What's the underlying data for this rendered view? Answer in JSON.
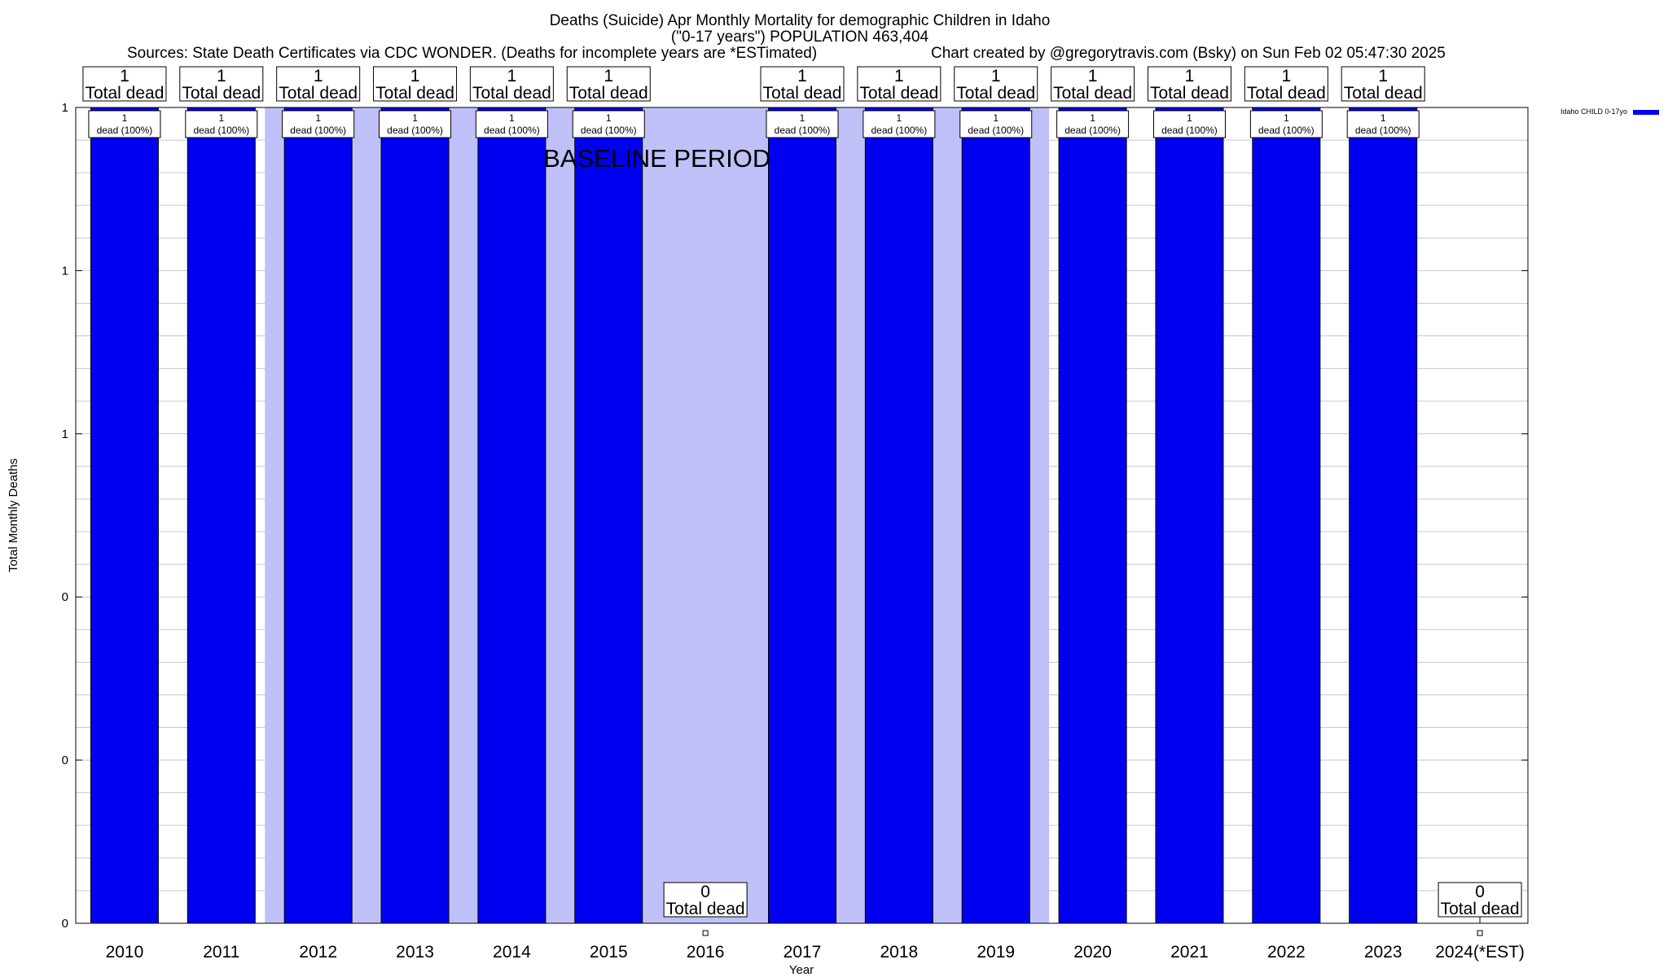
{
  "header": {
    "title_line1": "Deaths (Suicide) Apr Monthly Mortality for demographic Children in Idaho",
    "title_line2": "(\"0-17 years\") POPULATION 463,404",
    "sources": "Sources: State Death Certificates via CDC WONDER. (Deaths for incomplete years are *ESTimated)",
    "credit": "Chart created by @gregorytravis.com (Bsky) on Sun Feb 02 05:47:30 2025"
  },
  "chart_data": {
    "type": "bar",
    "xlabel": "Year",
    "ylabel": "Total Monthly Deaths",
    "categories": [
      "2010",
      "2011",
      "2012",
      "2013",
      "2014",
      "2015",
      "2016",
      "2017",
      "2018",
      "2019",
      "2020",
      "2021",
      "2022",
      "2023",
      "2024(*EST)"
    ],
    "series": [
      {
        "name": "Idaho CHILD 0-17yo",
        "color": "#0000f0",
        "values": [
          1,
          1,
          1,
          1,
          1,
          1,
          0,
          1,
          1,
          1,
          1,
          1,
          1,
          1,
          0
        ]
      }
    ],
    "total_labels": [
      "1",
      "1",
      "1",
      "1",
      "1",
      "1",
      "0",
      "1",
      "1",
      "1",
      "1",
      "1",
      "1",
      "1",
      "0"
    ],
    "total_suffix": "Total dead",
    "bar_labels": [
      "1",
      "1",
      "1",
      "1",
      "1",
      "1",
      "",
      "1",
      "1",
      "1",
      "1",
      "1",
      "1",
      "1",
      ""
    ],
    "bar_sublabels": [
      "dead (100%)",
      "dead (100%)",
      "dead (100%)",
      "dead (100%)",
      "dead (100%)",
      "dead (100%)",
      "",
      "dead (100%)",
      "dead (100%)",
      "dead (100%)",
      "dead (100%)",
      "dead (100%)",
      "dead (100%)",
      "dead (100%)",
      ""
    ],
    "ylim": [
      0,
      1
    ],
    "yticks": [
      {
        "value": 0,
        "label": "0"
      },
      {
        "value": 0.2,
        "label": "0"
      },
      {
        "value": 0.4,
        "label": "0"
      },
      {
        "value": 0.6,
        "label": "1"
      },
      {
        "value": 0.8,
        "label": "1"
      },
      {
        "value": 1.0,
        "label": "1"
      }
    ],
    "grid": true,
    "baseline_period": {
      "label": "BASELINE PERIOD",
      "from": "2012",
      "to": "2019",
      "color": "#c0c0f8"
    },
    "legend_position": "top-right"
  }
}
